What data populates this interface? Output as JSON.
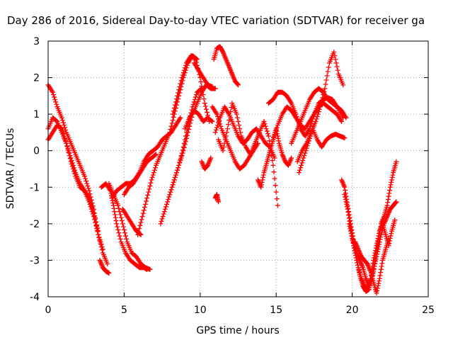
{
  "chart_data": {
    "type": "scatter",
    "title": "Day 286 of 2016, Sidereal Day-to-day VTEC variation (SDTVAR) for receiver ga",
    "xlabel": "GPS time / hours",
    "ylabel": "SDTVAR / TECUs",
    "xlim": [
      0,
      25
    ],
    "ylim": [
      -4,
      3
    ],
    "x_ticks": [
      "0",
      "5",
      "10",
      "15",
      "20",
      "25"
    ],
    "y_ticks": [
      "3",
      "2",
      "1",
      "0",
      "-1",
      "-2",
      "-3",
      "-4"
    ],
    "grid": true,
    "marker": "plus",
    "color": "#ff0000",
    "series": [
      {
        "x": [
          0.0,
          0.3,
          0.6,
          0.9,
          1.2,
          1.5,
          1.8,
          2.1,
          2.4,
          2.7,
          3.0,
          3.3,
          3.6,
          3.9
        ],
        "y": [
          1.8,
          1.6,
          1.2,
          0.9,
          0.5,
          0.2,
          -0.1,
          -0.4,
          -0.7,
          -1.1,
          -1.6,
          -2.3,
          -2.8,
          -3.1
        ]
      },
      {
        "x": [
          0.0,
          0.3,
          0.6,
          0.9,
          1.2,
          1.5,
          1.8,
          2.1,
          2.4,
          2.7,
          3.0,
          3.3,
          3.6
        ],
        "y": [
          0.6,
          0.9,
          0.8,
          0.5,
          0.2,
          -0.2,
          -0.6,
          -0.9,
          -1.1,
          -1.4,
          -1.8,
          -2.3,
          -2.7
        ]
      },
      {
        "x": [
          0.0,
          0.3,
          0.6,
          0.9,
          1.2,
          1.5,
          1.8,
          2.1,
          2.4,
          2.7,
          3.0,
          3.3
        ],
        "y": [
          0.3,
          0.5,
          0.7,
          0.6,
          0.2,
          -0.3,
          -0.7,
          -1.0,
          -1.1,
          -1.3,
          -1.7,
          -2.2
        ]
      },
      {
        "x": [
          3.4,
          3.6,
          3.8,
          4.0
        ],
        "y": [
          -3.0,
          -3.2,
          -3.3,
          -3.35
        ]
      },
      {
        "x": [
          3.5,
          3.8,
          4.1,
          4.3,
          4.5,
          4.8,
          5.1,
          5.4,
          5.7,
          6.0,
          6.3,
          6.5
        ],
        "y": [
          -1.0,
          -0.9,
          -1.1,
          -1.5,
          -2.0,
          -2.5,
          -2.8,
          -3.0,
          -3.1,
          -3.2,
          -3.2,
          -3.25
        ]
      },
      {
        "x": [
          4.0,
          4.3,
          4.6,
          4.9,
          5.2,
          5.5,
          5.8,
          6.1,
          6.4,
          6.7
        ],
        "y": [
          -0.9,
          -1.2,
          -1.5,
          -2.0,
          -2.5,
          -2.8,
          -2.9,
          -3.1,
          -3.2,
          -3.25
        ]
      },
      {
        "x": [
          4.2,
          4.5,
          4.8,
          5.1,
          5.4,
          5.7,
          6.0,
          6.3,
          6.6,
          6.9,
          7.2,
          7.5,
          7.8,
          8.1,
          8.4,
          8.7
        ],
        "y": [
          -1.3,
          -1.1,
          -1.0,
          -0.9,
          -0.9,
          -0.8,
          -0.6,
          -0.3,
          -0.1,
          0.0,
          0.1,
          0.3,
          0.4,
          0.5,
          0.7,
          0.9
        ]
      },
      {
        "x": [
          5.0,
          5.3,
          5.6,
          5.9,
          6.2,
          6.5,
          6.8,
          7.1
        ],
        "y": [
          -1.2,
          -1.0,
          -0.9,
          -0.7,
          -0.5,
          -0.3,
          -0.2,
          -0.1
        ]
      },
      {
        "x": [
          4.9,
          5.2,
          5.5,
          5.8,
          6.1
        ],
        "y": [
          -1.6,
          -1.8,
          -2.0,
          -2.2,
          -2.3
        ]
      },
      {
        "x": [
          5.9,
          6.2,
          6.5,
          6.8,
          7.1,
          7.4,
          7.7,
          8.0,
          8.3,
          8.6,
          8.9,
          9.2,
          9.5,
          9.8
        ],
        "y": [
          -2.3,
          -1.8,
          -1.3,
          -0.8,
          -0.4,
          -0.1,
          0.2,
          0.5,
          1.0,
          1.5,
          2.0,
          2.4,
          2.6,
          2.5
        ]
      },
      {
        "x": [
          7.4,
          7.7,
          8.0,
          8.3,
          8.6,
          8.9,
          9.2,
          9.5,
          9.8,
          10.1,
          10.4,
          10.7,
          11.0
        ],
        "y": [
          -2.0,
          -1.6,
          -1.2,
          -0.8,
          -0.4,
          0.0,
          0.5,
          1.0,
          1.3,
          1.6,
          1.8,
          1.7,
          1.7
        ]
      },
      {
        "x": [
          8.0,
          8.3,
          8.6,
          8.9,
          9.2,
          9.5,
          9.8,
          10.1
        ],
        "y": [
          -1.2,
          -0.8,
          -0.4,
          0.1,
          0.7,
          1.2,
          1.6,
          1.7
        ]
      },
      {
        "x": [
          8.2,
          8.5,
          8.8,
          9.1,
          9.4,
          9.7,
          10.0,
          10.3,
          10.6
        ],
        "y": [
          1.0,
          1.5,
          2.0,
          2.4,
          2.6,
          2.5,
          2.0,
          1.3,
          0.8
        ]
      },
      {
        "x": [
          9.0,
          9.3,
          9.6,
          9.9,
          10.2,
          10.5,
          10.8
        ],
        "y": [
          0.6,
          0.9,
          1.1,
          1.0,
          0.8,
          0.9,
          0.8
        ]
      },
      {
        "x": [
          9.6,
          9.9,
          10.2,
          10.5,
          10.8
        ],
        "y": [
          2.4,
          2.2,
          2.0,
          1.8,
          1.75
        ]
      },
      {
        "x": [
          10.9,
          11.1,
          11.3,
          11.5,
          11.7,
          11.9,
          12.1,
          12.3,
          12.5
        ],
        "y": [
          2.5,
          2.8,
          2.85,
          2.7,
          2.5,
          2.3,
          2.1,
          1.9,
          1.8
        ]
      },
      {
        "x": [
          10.8,
          11.1,
          11.4,
          11.7,
          12.0,
          12.3,
          12.6,
          12.9,
          13.2,
          13.5,
          13.8
        ],
        "y": [
          1.2,
          1.0,
          0.6,
          0.3,
          0.0,
          -0.3,
          -0.5,
          -0.4,
          -0.2,
          0.0,
          0.2
        ]
      },
      {
        "x": [
          11.0,
          11.3,
          11.6,
          11.9,
          12.2,
          12.5,
          12.8,
          13.1,
          13.4,
          13.7,
          14.0,
          14.3,
          14.6,
          14.9
        ],
        "y": [
          0.5,
          0.9,
          1.2,
          1.0,
          0.7,
          0.4,
          0.2,
          0.3,
          0.5,
          0.6,
          0.4,
          0.2,
          0.1,
          -0.2
        ]
      },
      {
        "x": [
          11.2,
          11.5,
          11.8,
          12.1,
          12.4,
          12.7,
          13.0,
          13.3,
          13.6,
          13.9,
          14.2,
          14.5,
          14.8,
          15.1
        ],
        "y": [
          0.3,
          0.0,
          0.6,
          1.3,
          1.0,
          0.4,
          0.1,
          -0.1,
          0.2,
          0.5,
          0.8,
          0.4,
          -0.4,
          -1.5
        ]
      },
      {
        "x": [
          10.1,
          10.3,
          10.5,
          10.7
        ],
        "y": [
          -0.3,
          -0.5,
          -0.4,
          -0.2
        ]
      },
      {
        "x": [
          11.0,
          11.1,
          11.2
        ],
        "y": [
          -1.3,
          -1.2,
          -1.4
        ]
      },
      {
        "x": [
          13.8,
          14.0,
          14.2,
          14.4,
          14.6,
          14.8,
          15.0,
          15.2,
          15.4,
          15.6,
          15.8,
          16.0
        ],
        "y": [
          -0.8,
          -1.0,
          -0.6,
          -0.3,
          0.0,
          0.3,
          0.6,
          0.2,
          -0.1,
          -0.3,
          -0.4,
          -0.2
        ]
      },
      {
        "x": [
          14.8,
          15.1,
          15.4,
          15.7,
          16.0,
          16.3,
          16.6,
          16.9,
          17.2,
          17.5,
          17.8,
          18.1,
          18.4,
          18.7,
          19.0,
          19.3
        ],
        "y": [
          0.3,
          0.7,
          1.0,
          1.2,
          1.1,
          0.9,
          0.7,
          0.6,
          0.8,
          1.0,
          1.2,
          1.3,
          1.2,
          1.1,
          1.0,
          0.8
        ]
      },
      {
        "x": [
          14.5,
          14.8,
          15.1,
          15.4,
          15.7,
          16.0,
          16.3,
          16.6,
          16.9,
          17.2,
          17.5,
          17.8,
          18.1,
          18.4,
          18.7,
          19.0,
          19.4
        ],
        "y": [
          1.3,
          1.4,
          1.6,
          1.6,
          1.5,
          1.3,
          1.0,
          0.6,
          0.4,
          0.6,
          1.0,
          1.3,
          1.4,
          1.45,
          1.4,
          1.2,
          0.9
        ]
      },
      {
        "x": [
          16.0,
          16.3,
          16.6,
          16.9,
          17.2,
          17.5,
          17.8,
          18.1,
          18.4,
          18.7,
          19.0,
          19.3,
          19.6
        ],
        "y": [
          0.2,
          0.5,
          0.8,
          1.1,
          1.4,
          1.6,
          1.7,
          1.6,
          1.4,
          1.3,
          1.2,
          1.1,
          0.9
        ]
      },
      {
        "x": [
          16.5,
          16.8,
          17.1,
          17.4,
          17.7,
          18.0,
          18.3,
          18.6,
          18.9,
          19.2,
          19.5
        ],
        "y": [
          -0.6,
          -0.2,
          0.2,
          0.6,
          0.3,
          0.1,
          0.3,
          0.4,
          0.45,
          0.4,
          0.35
        ]
      },
      {
        "x": [
          16.4,
          16.7,
          17.0,
          17.3,
          17.6,
          17.9,
          18.2,
          18.5,
          18.8,
          19.1,
          19.4
        ],
        "y": [
          -0.3,
          0.0,
          0.2,
          0.5,
          0.8,
          1.2,
          1.7,
          2.4,
          2.7,
          2.1,
          1.8
        ]
      },
      {
        "x": [
          19.3,
          19.5,
          19.7,
          19.9,
          20.1,
          20.3,
          20.5,
          20.7,
          20.9,
          21.1,
          21.3,
          21.5,
          21.7,
          21.9,
          22.1,
          22.3,
          22.5,
          22.7,
          22.9
        ],
        "y": [
          -0.8,
          -1.0,
          -1.5,
          -2.0,
          -2.5,
          -2.8,
          -3.0,
          -3.2,
          -3.5,
          -3.7,
          -3.5,
          -3.0,
          -2.5,
          -2.0,
          -1.8,
          -1.5,
          -1.0,
          -0.6,
          -0.3
        ]
      },
      {
        "x": [
          19.5,
          19.7,
          19.9,
          20.1,
          20.3,
          20.5,
          20.7,
          20.9,
          21.1,
          21.3,
          21.5,
          21.7,
          21.9,
          22.1,
          22.3,
          22.5,
          22.7,
          22.9
        ],
        "y": [
          -1.2,
          -1.6,
          -2.1,
          -2.6,
          -3.0,
          -3.4,
          -3.7,
          -3.85,
          -3.8,
          -3.5,
          -3.1,
          -2.7,
          -2.3,
          -2.0,
          -1.8,
          -1.6,
          -1.5,
          -1.4
        ]
      },
      {
        "x": [
          19.8,
          20.0,
          20.2,
          20.4,
          20.6,
          20.8,
          21.0,
          21.2,
          21.4,
          21.6,
          21.8,
          22.0,
          22.2,
          22.4,
          22.6,
          22.8
        ],
        "y": [
          -2.0,
          -2.4,
          -2.8,
          -3.2,
          -3.5,
          -3.7,
          -3.8,
          -3.5,
          -3.0,
          -2.6,
          -2.2,
          -2.0,
          -2.3,
          -2.6,
          -2.2,
          -1.9
        ]
      },
      {
        "x": [
          20.2,
          20.4,
          20.6,
          20.8,
          21.0,
          21.2,
          21.4,
          21.6,
          21.8,
          22.0,
          22.2,
          22.4
        ],
        "y": [
          -2.5,
          -2.7,
          -2.9,
          -3.0,
          -3.1,
          -3.3,
          -3.6,
          -3.9,
          -3.5,
          -3.0,
          -2.7,
          -2.4
        ]
      }
    ]
  }
}
